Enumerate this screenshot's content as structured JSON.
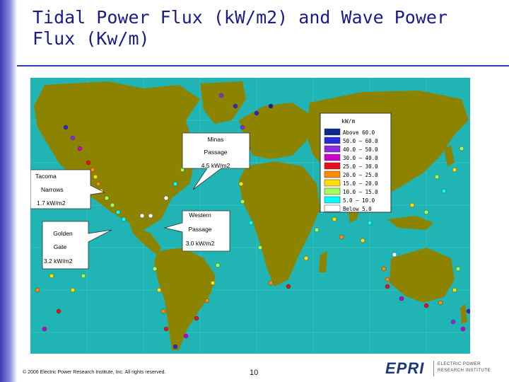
{
  "slide": {
    "title": "Tidal Power Flux (kW/m2) and Wave Power Flux (Kw/m)",
    "footer": "© 2006 Electric Power Research Institute, Inc. All rights reserved.",
    "page_number": "10"
  },
  "logo": {
    "word": "EPRI",
    "tagline_1": "ELECTRIC POWER",
    "tagline_2": "RESEARCH INSTITUTE"
  },
  "map": {
    "legend_title": "kW/m",
    "legend": [
      {
        "label": "Above 60.0",
        "color": "#0b2a8c"
      },
      {
        "label": "50.0 – 60.0",
        "color": "#2828d8"
      },
      {
        "label": "40.0 – 50.0",
        "color": "#8a2be2"
      },
      {
        "label": "30.0 – 40.0",
        "color": "#cc00cc"
      },
      {
        "label": "25.0 – 30.0",
        "color": "#e8101a"
      },
      {
        "label": "20.0 – 25.0",
        "color": "#ff8c00"
      },
      {
        "label": "15.0 – 20.0",
        "color": "#ffe000"
      },
      {
        "label": "10.0 – 15.0",
        "color": "#a0ff60"
      },
      {
        "label": "5.0 – 10.0",
        "color": "#00ffff"
      },
      {
        "label": "Below 5.0",
        "color": "#ffffff"
      }
    ],
    "callouts": {
      "minas": [
        "Minas",
        "Passage",
        "4.5 kW/m2"
      ],
      "tacoma": [
        "Tacoma",
        "Narrows",
        "1.7 kW/m2"
      ],
      "western": [
        "Western",
        "Passage",
        "3.0 kW/m2"
      ],
      "golden": [
        "Golden",
        "Gate",
        "3.2 kW/m2"
      ]
    },
    "colors": {
      "ocean": "#20b4b4",
      "land": "#8c8400"
    }
  }
}
